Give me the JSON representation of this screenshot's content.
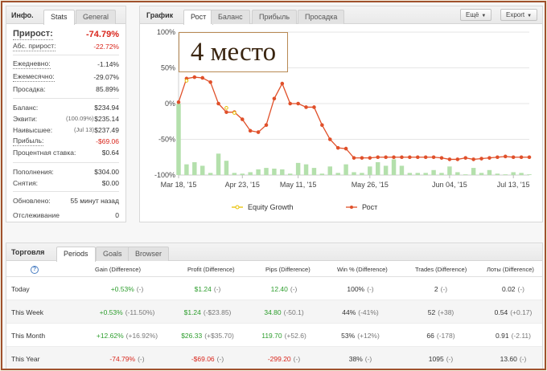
{
  "stats_panel": {
    "tab_title": "Инфо.",
    "tabs": [
      "Stats",
      "General"
    ],
    "growth": {
      "label": "Прирост:",
      "value": "-74.79%"
    },
    "abs_growth": {
      "label": "Абс. прирост:",
      "value": "-22.72%"
    },
    "daily": {
      "label": "Ежедневно:",
      "value": "-1.14%"
    },
    "monthly": {
      "label": "Ежемесячно:",
      "value": "-29.07%"
    },
    "drawdown": {
      "label": "Просадка:",
      "value": "85.89%"
    },
    "balance": {
      "label": "Баланс:",
      "value": "$234.94"
    },
    "equity": {
      "label": "Эквити:",
      "note": "(100.09%)",
      "value": "$235.14"
    },
    "highest": {
      "label": "Наивысшее:",
      "note": "(Jul 13)",
      "value": "$237.49"
    },
    "profit": {
      "label": "Прибыль:",
      "value": "-$69.06"
    },
    "interest": {
      "label": "Процентная ставка:",
      "value": "$0.64"
    },
    "deposits": {
      "label": "Пополнения:",
      "value": "$304.00"
    },
    "withdrawals": {
      "label": "Снятия:",
      "value": "$0.00"
    },
    "updated": {
      "label": "Обновлено:",
      "value": "55 минут назад"
    },
    "tracking": {
      "label": "Отслеживание",
      "value": "0"
    }
  },
  "chart_panel": {
    "tab_title": "График",
    "tabs": [
      "Рост",
      "Баланс",
      "Прибыль",
      "Просадка"
    ],
    "more_button": "Ещё",
    "export_button": "Export",
    "overlay_text": "4 место"
  },
  "chart_data": {
    "type": "line",
    "yticks": [
      "100%",
      "50%",
      "0%",
      "-50%",
      "-100%"
    ],
    "ylim": [
      -100,
      100
    ],
    "xticks": [
      "Mar 18, '15",
      "Apr 23, '15",
      "May 11, '15",
      "May 26, '15",
      "Jun 04, '15",
      "Jul 13, '15"
    ],
    "xlim": [
      0,
      44
    ],
    "xtick_positions": [
      0,
      8,
      15,
      24,
      34,
      42
    ],
    "legend": [
      "Equity Growth",
      "Рост"
    ],
    "series": [
      {
        "name": "Рост",
        "color": "#e0502a",
        "values": [
          2,
          35,
          37,
          36,
          30,
          0,
          -12,
          -12,
          -22,
          -38,
          -40,
          -30,
          7,
          28,
          0,
          0,
          -5,
          -5,
          -30,
          -50,
          -62,
          -63,
          -76,
          -76,
          -76,
          -75,
          -75,
          -75,
          -75,
          -75,
          -75,
          -75,
          -75,
          -76,
          -78,
          -78,
          -76,
          -78,
          -77,
          -76,
          -75,
          -74,
          -75,
          -75,
          -75
        ]
      },
      {
        "name": "Equity Growth",
        "color": "#e8c000",
        "values": [
          null,
          32,
          null,
          null,
          null,
          null,
          -6,
          -13,
          null,
          null,
          null,
          null,
          null,
          null,
          null,
          null,
          null,
          null,
          null,
          null,
          null,
          null,
          null,
          null,
          null,
          null,
          null,
          null,
          null,
          null,
          null,
          null,
          null,
          null,
          null,
          null,
          null,
          null,
          null,
          null,
          null,
          null,
          null,
          null,
          null
        ]
      }
    ],
    "bars": {
      "color": "#b4e0ac",
      "base": -100,
      "values": [
        0,
        -85,
        -82,
        -87,
        -97,
        -70,
        -80,
        -97,
        -98,
        -96,
        -92,
        -90,
        -91,
        -92,
        -98,
        -83,
        -85,
        -90,
        -98,
        -88,
        -97,
        -85,
        -96,
        -97,
        -88,
        -82,
        -87,
        -78,
        -87,
        -97,
        -97,
        -97,
        -93,
        -97,
        -88,
        -96,
        -99,
        -90,
        -97,
        -93,
        -98,
        -99,
        -96,
        -97,
        -99
      ]
    }
  },
  "trading_panel": {
    "tab_title": "Торговля",
    "tabs": [
      "Periods",
      "Goals",
      "Browser"
    ],
    "headers": [
      "Gain (Difference)",
      "Profit (Difference)",
      "Pips (Difference)",
      "Win % (Difference)",
      "Trades (Difference)",
      "Лоты (Difference)"
    ],
    "rows": [
      {
        "period": "Today",
        "gain": "+0.53%",
        "gain_d": "(-)",
        "profit": "$1.24",
        "profit_d": "(-)",
        "pips": "12.40",
        "pips_d": "(-)",
        "win": "100%",
        "win_d": "(-)",
        "trades": "2",
        "trades_d": "(-)",
        "lots": "0.02",
        "lots_d": "(-)"
      },
      {
        "period": "This Week",
        "gain": "+0.53%",
        "gain_d": "(-11.50%)",
        "profit": "$1.24",
        "profit_d": "(-$23.85)",
        "pips": "34.80",
        "pips_d": "(-50.1)",
        "win": "44%",
        "win_d": "(-41%)",
        "trades": "52",
        "trades_d": "(+38)",
        "lots": "0.54",
        "lots_d": "(+0.17)"
      },
      {
        "period": "This Month",
        "gain": "+12.62%",
        "gain_d": "(+16.92%)",
        "profit": "$26.33",
        "profit_d": "(+$35.70)",
        "pips": "119.70",
        "pips_d": "(+52.6)",
        "win": "53%",
        "win_d": "(+12%)",
        "trades": "66",
        "trades_d": "(-178)",
        "lots": "0.91",
        "lots_d": "(-2.11)"
      },
      {
        "period": "This Year",
        "gain": "-74.79%",
        "gain_d": "(-)",
        "profit": "-$69.06",
        "profit_d": "(-)",
        "pips": "-299.20",
        "pips_d": "(-)",
        "win": "38%",
        "win_d": "(-)",
        "trades": "1095",
        "trades_d": "(-)",
        "lots": "13.60",
        "lots_d": "(-)"
      }
    ]
  }
}
